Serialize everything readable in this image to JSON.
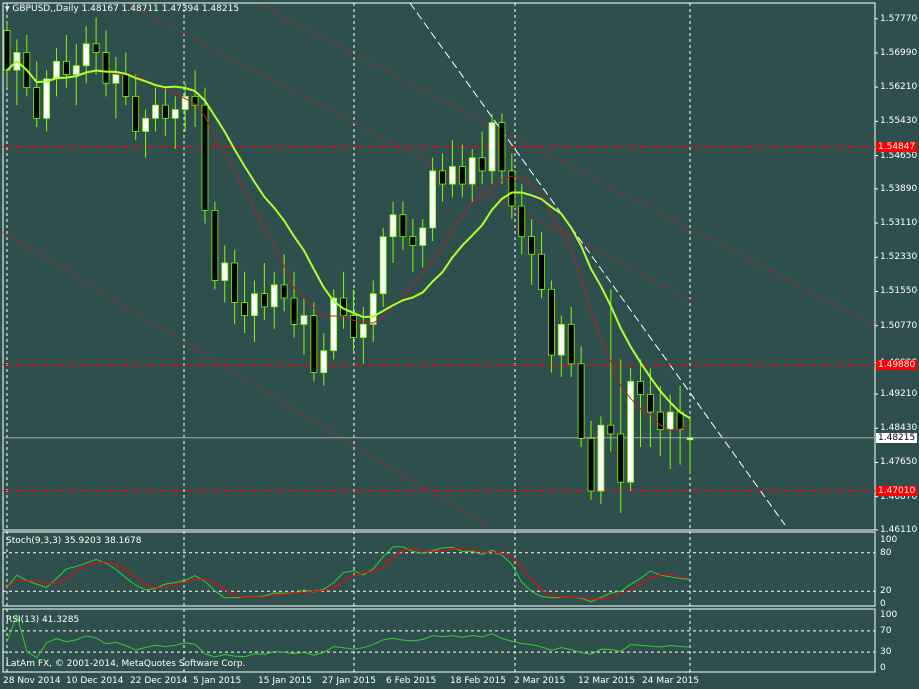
{
  "colors": {
    "background": "#2f4f4f",
    "axis": "#ffffff",
    "grid": "#ffffff",
    "bull": "#ffffff",
    "bear": "#000000",
    "wick": "#7cfc00",
    "ma_fast": "#adff2f",
    "ma_slow": "#b22222",
    "level": "#ff0000",
    "trend": "#b22222",
    "stoch_main": "#32cd32",
    "stoch_signal": "#ff0000",
    "rsi": "#32cd32"
  },
  "header": {
    "symbol_label": "GBPUSD,,Daily",
    "ohlc": "1.48167 1.48711 1.47394 1.48215",
    "menu_icon": "triangle-down-icon"
  },
  "stoch_panel": {
    "label": "Stoch(9,3,3) 35.9203 38.1678",
    "levels": [
      "100",
      "80",
      "20",
      "0"
    ]
  },
  "rsi_panel": {
    "label": "RSI(13) 41.3285",
    "levels": [
      "100",
      "70",
      "30",
      "0"
    ]
  },
  "copyright": "LatAm FX, © 2001-2014, MetaQuotes Software Corp.",
  "price_axis": {
    "ticks": [
      "1.57770",
      "1.56990",
      "1.56210",
      "1.55430",
      "1.54650",
      "1.53890",
      "1.53110",
      "1.52330",
      "1.51550",
      "1.50770",
      "1.49920",
      "1.49210",
      "1.48430",
      "1.47650",
      "1.46870",
      "1.46110"
    ],
    "current": "1.48215",
    "level_tags": [
      "1.54847",
      "1.49880",
      "1.47010"
    ]
  },
  "time_axis": {
    "labels": [
      "28 Nov 2014",
      "10 Dec 2014",
      "22 Dec 2014",
      "5 Jan 2015",
      "15 Jan 2015",
      "27 Jan 2015",
      "6 Feb 2015",
      "18 Feb 2015",
      "2 Mar 2015",
      "12 Mar 2015",
      "24 Mar 2015"
    ]
  },
  "chart_data": {
    "type": "candlestick",
    "symbol": "GBPUSD",
    "timeframe": "Daily",
    "last": {
      "open": 1.48167,
      "high": 1.48711,
      "low": 1.47394,
      "close": 1.48215
    },
    "ylim": [
      1.4611,
      1.5813
    ],
    "horizontal_levels": [
      1.54847,
      1.4988,
      1.4701
    ],
    "ohlc": [
      [
        1.575,
        1.577,
        1.562,
        1.566
      ],
      [
        1.566,
        1.573,
        1.558,
        1.57
      ],
      [
        1.57,
        1.574,
        1.56,
        1.562
      ],
      [
        1.562,
        1.568,
        1.553,
        1.555
      ],
      [
        1.555,
        1.566,
        1.552,
        1.564
      ],
      [
        1.564,
        1.571,
        1.56,
        1.568
      ],
      [
        1.568,
        1.574,
        1.562,
        1.565
      ],
      [
        1.565,
        1.572,
        1.558,
        1.567
      ],
      [
        1.567,
        1.576,
        1.563,
        1.572
      ],
      [
        1.572,
        1.578,
        1.565,
        1.57
      ],
      [
        1.57,
        1.575,
        1.56,
        1.563
      ],
      [
        1.563,
        1.569,
        1.555,
        1.565
      ],
      [
        1.565,
        1.57,
        1.558,
        1.56
      ],
      [
        1.56,
        1.565,
        1.55,
        1.552
      ],
      [
        1.552,
        1.557,
        1.546,
        1.555
      ],
      [
        1.555,
        1.562,
        1.552,
        1.558
      ],
      [
        1.558,
        1.562,
        1.551,
        1.555
      ],
      [
        1.555,
        1.56,
        1.548,
        1.557
      ],
      [
        1.557,
        1.563,
        1.552,
        1.56
      ],
      [
        1.56,
        1.566,
        1.553,
        1.558
      ],
      [
        1.558,
        1.562,
        1.531,
        1.534
      ],
      [
        1.534,
        1.536,
        1.516,
        1.518
      ],
      [
        1.518,
        1.526,
        1.513,
        1.522
      ],
      [
        1.522,
        1.525,
        1.508,
        1.513
      ],
      [
        1.513,
        1.52,
        1.506,
        1.51
      ],
      [
        1.51,
        1.518,
        1.504,
        1.515
      ],
      [
        1.515,
        1.522,
        1.509,
        1.512
      ],
      [
        1.512,
        1.52,
        1.507,
        1.517
      ],
      [
        1.517,
        1.524,
        1.511,
        1.514
      ],
      [
        1.514,
        1.52,
        1.505,
        1.508
      ],
      [
        1.508,
        1.514,
        1.501,
        1.51
      ],
      [
        1.51,
        1.513,
        1.495,
        1.497
      ],
      [
        1.497,
        1.506,
        1.494,
        1.502
      ],
      [
        1.502,
        1.516,
        1.5,
        1.514
      ],
      [
        1.514,
        1.52,
        1.507,
        1.51
      ],
      [
        1.51,
        1.516,
        1.502,
        1.505
      ],
      [
        1.505,
        1.512,
        1.499,
        1.508
      ],
      [
        1.508,
        1.518,
        1.504,
        1.515
      ],
      [
        1.515,
        1.53,
        1.512,
        1.528
      ],
      [
        1.528,
        1.536,
        1.522,
        1.533
      ],
      [
        1.533,
        1.536,
        1.525,
        1.528
      ],
      [
        1.528,
        1.532,
        1.52,
        1.526
      ],
      [
        1.526,
        1.532,
        1.521,
        1.53
      ],
      [
        1.53,
        1.546,
        1.527,
        1.543
      ],
      [
        1.543,
        1.547,
        1.536,
        1.54
      ],
      [
        1.54,
        1.55,
        1.537,
        1.544
      ],
      [
        1.544,
        1.549,
        1.537,
        1.54
      ],
      [
        1.54,
        1.548,
        1.536,
        1.546
      ],
      [
        1.546,
        1.552,
        1.54,
        1.543
      ],
      [
        1.543,
        1.556,
        1.54,
        1.554
      ],
      [
        1.554,
        1.556,
        1.54,
        1.543
      ],
      [
        1.543,
        1.547,
        1.532,
        1.535
      ],
      [
        1.535,
        1.54,
        1.524,
        1.528
      ],
      [
        1.528,
        1.532,
        1.517,
        1.524
      ],
      [
        1.524,
        1.529,
        1.514,
        1.516
      ],
      [
        1.516,
        1.518,
        1.497,
        1.501
      ],
      [
        1.501,
        1.51,
        1.496,
        1.508
      ],
      [
        1.508,
        1.512,
        1.496,
        1.499
      ],
      [
        1.499,
        1.503,
        1.48,
        1.482
      ],
      [
        1.482,
        1.486,
        1.468,
        1.47
      ],
      [
        1.47,
        1.487,
        1.467,
        1.485
      ],
      [
        1.485,
        1.516,
        1.479,
        1.483
      ],
      [
        1.483,
        1.5,
        1.465,
        1.472
      ],
      [
        1.472,
        1.498,
        1.47,
        1.495
      ],
      [
        1.495,
        1.5,
        1.48,
        1.492
      ],
      [
        1.492,
        1.498,
        1.48,
        1.488
      ],
      [
        1.488,
        1.494,
        1.478,
        1.484
      ],
      [
        1.484,
        1.492,
        1.475,
        1.488
      ],
      [
        1.488,
        1.494,
        1.476,
        1.484
      ],
      [
        1.481672,
        1.48711,
        1.47394,
        1.48215
      ]
    ],
    "indicators": {
      "stochastic": {
        "params": "9,3,3",
        "main": 35.9203,
        "signal": 38.1678
      },
      "rsi": {
        "period": 13,
        "value": 41.3285
      }
    }
  }
}
